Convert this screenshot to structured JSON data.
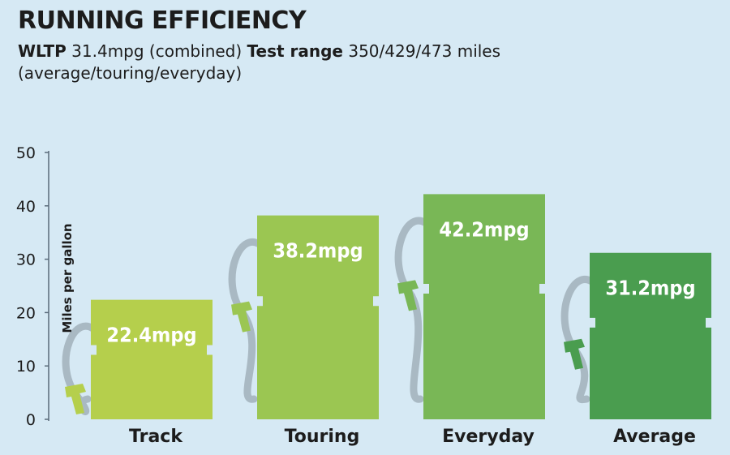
{
  "header": {
    "title": "RUNNING EFFICIENCY",
    "wltp_label": "WLTP",
    "wltp_value": "31.4mpg (combined)",
    "range_label": "Test range",
    "range_value": "350/429/473 miles",
    "range_note": "(average/touring/everyday)"
  },
  "chart_data": {
    "type": "bar",
    "categories": [
      "Track",
      "Touring",
      "Everyday",
      "Average"
    ],
    "values": [
      22.4,
      38.2,
      42.2,
      31.2
    ],
    "value_labels": [
      "22.4mpg",
      "38.2mpg",
      "42.2mpg",
      "31.2mpg"
    ],
    "ylabel": "Miles per gallon",
    "ylim": [
      0,
      50
    ],
    "yticks": [
      0,
      10,
      20,
      30,
      40,
      50
    ],
    "grid": false,
    "colors": [
      "#b5cf4c",
      "#9bc652",
      "#79b756",
      "#4a9d4f"
    ],
    "axis_color": "#5a6b7a",
    "hose_color": "#a9b9c3",
    "label_color": "#ffffff"
  }
}
